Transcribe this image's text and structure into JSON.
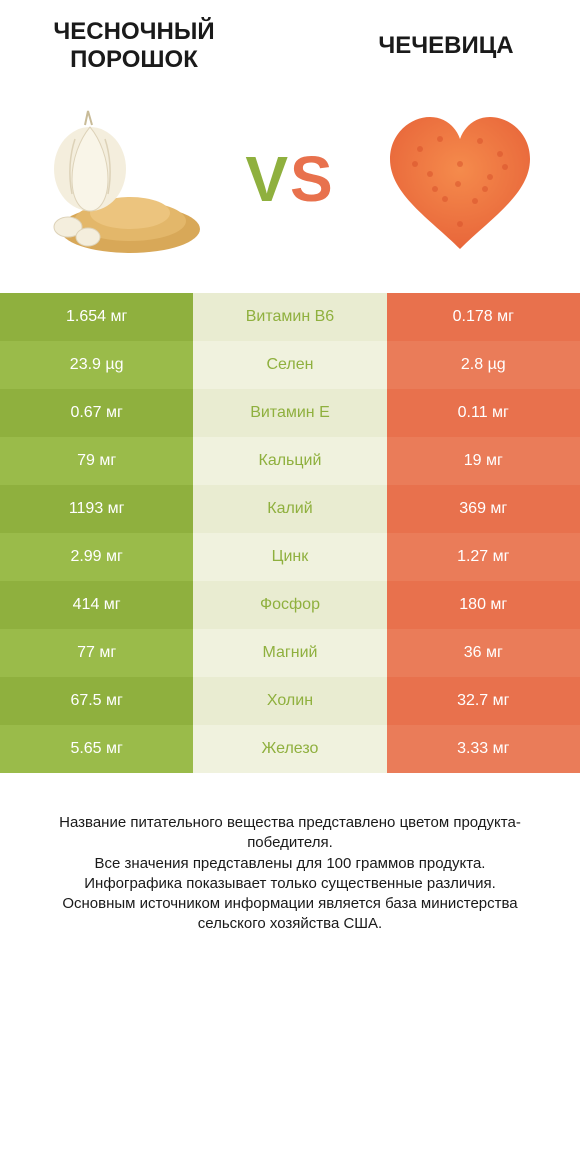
{
  "left_title": "ЧЕСНОЧНЫЙ ПОРОШОК",
  "right_title": "ЧЕЧЕВИЦА",
  "vs": "VS",
  "colors": {
    "left": "#8fb03e",
    "left_alt": "#9abb4a",
    "mid": "#e9ecd1",
    "mid_alt": "#f0f2de",
    "right": "#e8714d",
    "right_alt": "#ea7c59",
    "mid_text_left": "#8fb03e",
    "mid_text_right": "#e8714d",
    "vs_v": "#8fb03e",
    "vs_s": "#e8714d",
    "footer_text": "#1a1a1a"
  },
  "rows": [
    {
      "nutrient": "Витамин B6",
      "left": "1.654 мг",
      "right": "0.178 мг",
      "winner": "left"
    },
    {
      "nutrient": "Селен",
      "left": "23.9 µg",
      "right": "2.8 µg",
      "winner": "left"
    },
    {
      "nutrient": "Витамин E",
      "left": "0.67 мг",
      "right": "0.11 мг",
      "winner": "left"
    },
    {
      "nutrient": "Кальций",
      "left": "79 мг",
      "right": "19 мг",
      "winner": "left"
    },
    {
      "nutrient": "Калий",
      "left": "1193 мг",
      "right": "369 мг",
      "winner": "left"
    },
    {
      "nutrient": "Цинк",
      "left": "2.99 мг",
      "right": "1.27 мг",
      "winner": "left"
    },
    {
      "nutrient": "Фосфор",
      "left": "414 мг",
      "right": "180 мг",
      "winner": "left"
    },
    {
      "nutrient": "Магний",
      "left": "77 мг",
      "right": "36 мг",
      "winner": "left"
    },
    {
      "nutrient": "Холин",
      "left": "67.5 мг",
      "right": "32.7 мг",
      "winner": "left"
    },
    {
      "nutrient": "Железо",
      "left": "5.65 мг",
      "right": "3.33 мг",
      "winner": "left"
    }
  ],
  "footer": "Название питательного вещества представлено цветом продукта-победителя.\nВсе значения представлены для 100 граммов продукта.\nИнфографика показывает только существенные различия.\nОсновным источником информации является база министерства сельского хозяйства США."
}
